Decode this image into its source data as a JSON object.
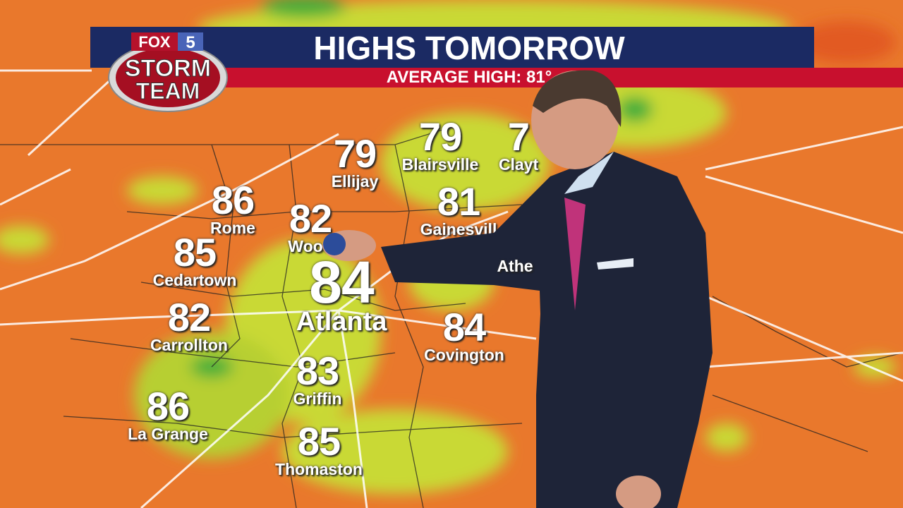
{
  "header": {
    "title": "HIGHS TOMORROW",
    "subtitle": "AVERAGE HIGH: 81°"
  },
  "logo": {
    "line1": "FOX",
    "line2": "5",
    "line3": "STORM",
    "line4": "TEAM"
  },
  "colors": {
    "banner_blue": "#1b2a63",
    "banner_red": "#c8102e",
    "map_hot": "#e9782c",
    "map_mild": "#c9d934",
    "map_cool": "#3fae3a"
  },
  "cities": [
    {
      "name": "Ellijay",
      "temp": "79"
    },
    {
      "name": "Blairsville",
      "temp": "79"
    },
    {
      "name": "Clayt",
      "temp": "7"
    },
    {
      "name": "Rome",
      "temp": "86"
    },
    {
      "name": "Wood",
      "temp": "82"
    },
    {
      "name": "Gainesvill",
      "temp": "81"
    },
    {
      "name": "Cedartown",
      "temp": "85"
    },
    {
      "name": "Atlanta",
      "temp": "84"
    },
    {
      "name": "Athe",
      "temp": ""
    },
    {
      "name": "Carrollton",
      "temp": "82"
    },
    {
      "name": "Covington",
      "temp": "84"
    },
    {
      "name": "Griffin",
      "temp": "83"
    },
    {
      "name": "La Grange",
      "temp": "86"
    },
    {
      "name": "Thomaston",
      "temp": "85"
    }
  ]
}
